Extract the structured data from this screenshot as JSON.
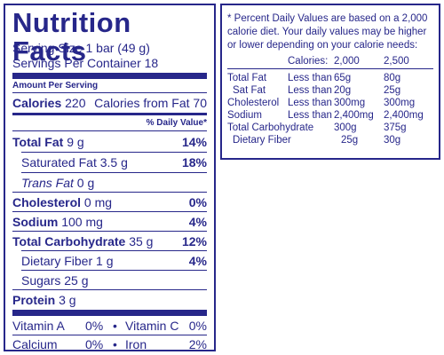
{
  "label": {
    "title": "Nutrition Facts",
    "serving_size": "Serving Size 1 bar (49 g)",
    "servings_per_container": "Servings Per Container 18",
    "amount_per_serving": "Amount Per Serving",
    "calories_label": "Calories",
    "calories_value": "220",
    "calories_from_fat": "Calories from Fat 70",
    "daily_value_header": "% Daily Value*",
    "nutrients": [
      {
        "name": "Total Fat",
        "amount": "9 g",
        "dv": "14%"
      },
      {
        "name": "Saturated Fat",
        "amount": "3.5 g",
        "dv": "18%"
      },
      {
        "name": "Trans Fat",
        "amount": "0 g",
        "dv": ""
      },
      {
        "name": "Cholesterol",
        "amount": "0 mg",
        "dv": "0%"
      },
      {
        "name": "Sodium",
        "amount": "100 mg",
        "dv": "4%"
      },
      {
        "name": "Total Carbohydrate",
        "amount": "35 g",
        "dv": "12%"
      },
      {
        "name": "Dietary Fiber",
        "amount": "1 g",
        "dv": "4%"
      },
      {
        "name": "Sugars",
        "amount": "25 g",
        "dv": ""
      },
      {
        "name": "Protein",
        "amount": "3 g",
        "dv": ""
      }
    ],
    "vitamins": [
      {
        "left_name": "Vitamin A",
        "left_pct": "0%",
        "right_name": "Vitamin C",
        "right_pct": "0%"
      },
      {
        "left_name": "Calcium",
        "left_pct": "0%",
        "right_name": "Iron",
        "right_pct": "2%"
      }
    ],
    "bullet": "•"
  },
  "footnote": {
    "lines": [
      "* Percent Daily Values are based on a 2,000",
      "calorie diet.  Your daily values may be higher",
      "or lower depending on your calorie needs:"
    ],
    "header": {
      "label": "Calories:",
      "v2000": "2,000",
      "v2500": "2,500"
    },
    "rows": [
      {
        "name": "Total Fat",
        "qual": "Less than",
        "v2000": "65g",
        "v2500": "80g"
      },
      {
        "name": "Sat Fat",
        "qual": "Less than",
        "v2000": "20g",
        "v2500": "25g"
      },
      {
        "name": "Cholesterol",
        "qual": "Less than",
        "v2000": "300mg",
        "v2500": "300mg"
      },
      {
        "name": "Sodium",
        "qual": "Less than",
        "v2000": "2,400mg",
        "v2500": "2,400mg"
      },
      {
        "name": "Total Carbohydrate",
        "qual": "",
        "v2000": "300g",
        "v2500": "375g"
      },
      {
        "name": "Dietary Fiber",
        "qual": "",
        "v2000": "25g",
        "v2500": "30g"
      }
    ]
  }
}
